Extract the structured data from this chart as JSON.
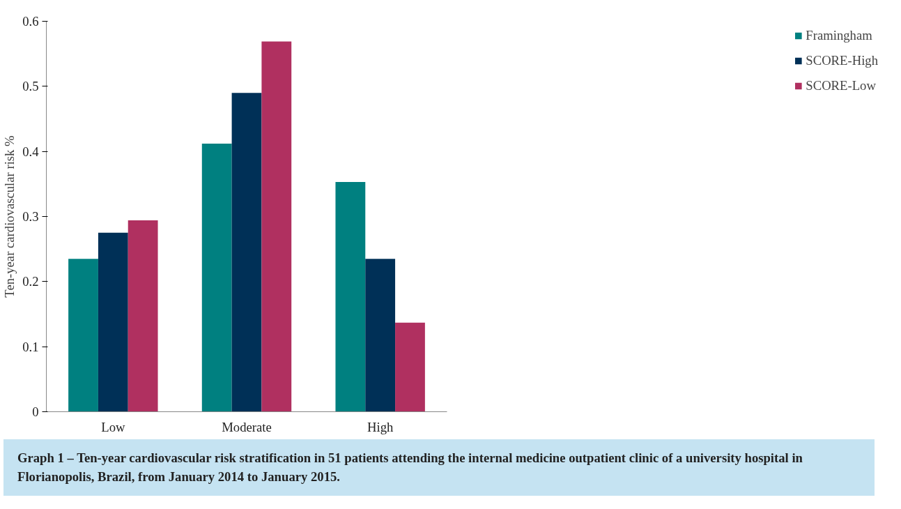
{
  "chart_data": {
    "type": "bar",
    "ylabel": "Ten-year cardiovascular risk %",
    "categories": [
      "Low",
      "Moderate",
      "High"
    ],
    "series": [
      {
        "name": "Framingham",
        "color": "#008080",
        "values": [
          0.235,
          0.412,
          0.353
        ]
      },
      {
        "name": "SCORE-High",
        "color": "#003057",
        "values": [
          0.275,
          0.49,
          0.235
        ]
      },
      {
        "name": "SCORE-Low",
        "color": "#b03060",
        "values": [
          0.294,
          0.569,
          0.137
        ]
      }
    ],
    "ylim": [
      0,
      0.6
    ],
    "yticks": [
      0,
      0.1,
      0.2,
      0.3,
      0.4,
      0.5,
      0.6
    ],
    "grid": false,
    "legend": "right",
    "annotations": [
      "Graph 1 – Ten-year cardiovascular risk stratification in 51 patients attending the internal medicine outpatient clinic of a university hospital in Florianopolis, Brazil, from January 2014 to January 2015."
    ]
  }
}
